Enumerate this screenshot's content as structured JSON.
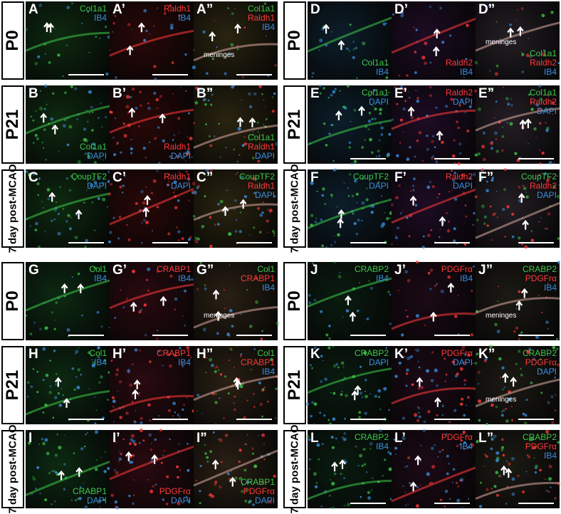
{
  "colors": {
    "green": "#3ec94a",
    "red": "#ff3a3a",
    "blue": "#3a8fe0",
    "white": "#ffffff"
  },
  "groups": [
    {
      "rows": [
        {
          "label": "P0",
          "panels": [
            {
              "id": "A",
              "stains": [
                {
                  "text": "Col1a1",
                  "color": "green"
                },
                {
                  "text": "IB4",
                  "color": "blue"
                }
              ],
              "pos": "top",
              "note": ""
            },
            {
              "id": "A’",
              "stains": [
                {
                  "text": "Raldh1",
                  "color": "red"
                },
                {
                  "text": "IB4",
                  "color": "blue"
                }
              ],
              "pos": "top",
              "note": ""
            },
            {
              "id": "A”",
              "stains": [
                {
                  "text": "Col1a1",
                  "color": "green"
                },
                {
                  "text": "Raldh1",
                  "color": "red"
                },
                {
                  "text": "IB4",
                  "color": "blue"
                }
              ],
              "pos": "top",
              "note": "meninges"
            }
          ]
        },
        {
          "label": "P21",
          "panels": [
            {
              "id": "B",
              "stains": [
                {
                  "text": "Col1a1",
                  "color": "green"
                },
                {
                  "text": "DAPI",
                  "color": "blue"
                }
              ],
              "pos": "bot",
              "note": ""
            },
            {
              "id": "B’",
              "stains": [
                {
                  "text": "Raldh1",
                  "color": "red"
                },
                {
                  "text": "DAPI",
                  "color": "blue"
                }
              ],
              "pos": "bot",
              "note": ""
            },
            {
              "id": "B”",
              "stains": [
                {
                  "text": "Col1a1",
                  "color": "green"
                },
                {
                  "text": "Raldh1",
                  "color": "red"
                },
                {
                  "text": "DAPI",
                  "color": "blue"
                }
              ],
              "pos": "bot",
              "note": ""
            }
          ]
        },
        {
          "label": "7 day post-MCAO",
          "panels": [
            {
              "id": "C",
              "stains": [
                {
                  "text": "CoupTF2",
                  "color": "green"
                },
                {
                  "text": "DAPI",
                  "color": "blue"
                }
              ],
              "pos": "top",
              "note": ""
            },
            {
              "id": "C’",
              "stains": [
                {
                  "text": "Raldh1",
                  "color": "red"
                },
                {
                  "text": "DAPI",
                  "color": "blue"
                }
              ],
              "pos": "top",
              "note": ""
            },
            {
              "id": "C”",
              "stains": [
                {
                  "text": "CoupTF2",
                  "color": "green"
                },
                {
                  "text": "Raldh1",
                  "color": "red"
                },
                {
                  "text": "DAPI",
                  "color": "blue"
                }
              ],
              "pos": "top",
              "note": ""
            }
          ]
        }
      ]
    },
    {
      "rows": [
        {
          "label": "P0",
          "panels": [
            {
              "id": "D",
              "stains": [
                {
                  "text": "Col1a1",
                  "color": "green"
                },
                {
                  "text": "IB4",
                  "color": "blue"
                }
              ],
              "pos": "bot",
              "note": ""
            },
            {
              "id": "D’",
              "stains": [
                {
                  "text": "Raldh2",
                  "color": "red"
                },
                {
                  "text": "IB4",
                  "color": "blue"
                }
              ],
              "pos": "bot",
              "note": ""
            },
            {
              "id": "D”",
              "stains": [
                {
                  "text": "Col1a1",
                  "color": "green"
                },
                {
                  "text": "Raldh2",
                  "color": "red"
                },
                {
                  "text": "IB4",
                  "color": "blue"
                }
              ],
              "pos": "bot",
              "note": "meninges"
            }
          ]
        },
        {
          "label": "P21",
          "panels": [
            {
              "id": "E",
              "stains": [
                {
                  "text": "Col1a1",
                  "color": "green"
                },
                {
                  "text": "DAPI",
                  "color": "blue"
                }
              ],
              "pos": "top",
              "note": ""
            },
            {
              "id": "E’",
              "stains": [
                {
                  "text": "Raldh2",
                  "color": "red"
                },
                {
                  "text": "DAPI",
                  "color": "blue"
                }
              ],
              "pos": "top",
              "note": ""
            },
            {
              "id": "E”",
              "stains": [
                {
                  "text": "Col1a1",
                  "color": "green"
                },
                {
                  "text": "Raldh2",
                  "color": "red"
                },
                {
                  "text": "DAPI",
                  "color": "blue"
                }
              ],
              "pos": "top",
              "note": ""
            }
          ]
        },
        {
          "label": "7 day post-MCAO",
          "panels": [
            {
              "id": "F",
              "stains": [
                {
                  "text": "CoupTF2",
                  "color": "green"
                },
                {
                  "text": "DAPI",
                  "color": "blue"
                }
              ],
              "pos": "top",
              "note": ""
            },
            {
              "id": "F’",
              "stains": [
                {
                  "text": "Raldh2",
                  "color": "red"
                },
                {
                  "text": "DAPI",
                  "color": "blue"
                }
              ],
              "pos": "top",
              "note": ""
            },
            {
              "id": "F”",
              "stains": [
                {
                  "text": "CoupTF2",
                  "color": "green"
                },
                {
                  "text": "Raldh2",
                  "color": "red"
                },
                {
                  "text": "DAPI",
                  "color": "blue"
                }
              ],
              "pos": "top",
              "note": ""
            }
          ]
        }
      ]
    },
    {
      "rows": [
        {
          "label": "P0",
          "panels": [
            {
              "id": "G",
              "stains": [
                {
                  "text": "Col1",
                  "color": "green"
                },
                {
                  "text": "IB4",
                  "color": "blue"
                }
              ],
              "pos": "top",
              "note": ""
            },
            {
              "id": "G’",
              "stains": [
                {
                  "text": "CRABP1",
                  "color": "red"
                },
                {
                  "text": "IB4",
                  "color": "blue"
                }
              ],
              "pos": "top",
              "note": ""
            },
            {
              "id": "G”",
              "stains": [
                {
                  "text": "Col1",
                  "color": "green"
                },
                {
                  "text": "CRABP1",
                  "color": "red"
                },
                {
                  "text": "IB4",
                  "color": "blue"
                }
              ],
              "pos": "top",
              "note": "meninges"
            }
          ]
        },
        {
          "label": "P21",
          "panels": [
            {
              "id": "H",
              "stains": [
                {
                  "text": "Col1",
                  "color": "green"
                },
                {
                  "text": "IB4",
                  "color": "blue"
                }
              ],
              "pos": "top",
              "note": ""
            },
            {
              "id": "H’",
              "stains": [
                {
                  "text": "CRABP1",
                  "color": "red"
                },
                {
                  "text": "IB4",
                  "color": "blue"
                }
              ],
              "pos": "top",
              "note": ""
            },
            {
              "id": "H”",
              "stains": [
                {
                  "text": "Col1",
                  "color": "green"
                },
                {
                  "text": "CRABP1",
                  "color": "red"
                },
                {
                  "text": "IB4",
                  "color": "blue"
                }
              ],
              "pos": "top",
              "note": ""
            }
          ]
        },
        {
          "label": "7 day post-MCAO",
          "panels": [
            {
              "id": "I",
              "stains": [
                {
                  "text": "CRABP1",
                  "color": "green"
                },
                {
                  "text": "DAPI",
                  "color": "blue"
                }
              ],
              "pos": "bot",
              "note": ""
            },
            {
              "id": "I’",
              "stains": [
                {
                  "text": "PDGFrα",
                  "color": "red"
                },
                {
                  "text": "DAPI",
                  "color": "blue"
                }
              ],
              "pos": "bot",
              "note": ""
            },
            {
              "id": "I”",
              "stains": [
                {
                  "text": "CRABP1",
                  "color": "green"
                },
                {
                  "text": "PDGFrα",
                  "color": "red"
                },
                {
                  "text": "DAPI",
                  "color": "blue"
                }
              ],
              "pos": "bot",
              "note": ""
            }
          ]
        }
      ]
    },
    {
      "rows": [
        {
          "label": "P0",
          "panels": [
            {
              "id": "J",
              "stains": [
                {
                  "text": "CRABP2",
                  "color": "green"
                },
                {
                  "text": "IB4",
                  "color": "blue"
                }
              ],
              "pos": "top",
              "note": ""
            },
            {
              "id": "J’",
              "stains": [
                {
                  "text": "PDGFrα",
                  "color": "red"
                },
                {
                  "text": "IB4",
                  "color": "blue"
                }
              ],
              "pos": "top",
              "note": ""
            },
            {
              "id": "J”",
              "stains": [
                {
                  "text": "CRABP2",
                  "color": "green"
                },
                {
                  "text": "PDGFrα",
                  "color": "red"
                },
                {
                  "text": "IB4",
                  "color": "blue"
                }
              ],
              "pos": "top",
              "note": "meninges"
            }
          ]
        },
        {
          "label": "P21",
          "panels": [
            {
              "id": "K",
              "stains": [
                {
                  "text": "CRABP2",
                  "color": "green"
                },
                {
                  "text": "DAPI",
                  "color": "blue"
                }
              ],
              "pos": "top",
              "note": ""
            },
            {
              "id": "K’",
              "stains": [
                {
                  "text": "PDGFrα",
                  "color": "red"
                },
                {
                  "text": "DAPI",
                  "color": "blue"
                }
              ],
              "pos": "top",
              "note": ""
            },
            {
              "id": "K”",
              "stains": [
                {
                  "text": "CRABP2",
                  "color": "green"
                },
                {
                  "text": "PDGFrα",
                  "color": "red"
                },
                {
                  "text": "DAPI",
                  "color": "blue"
                }
              ],
              "pos": "top",
              "note": "meninges"
            }
          ]
        },
        {
          "label": "7 day post-MCAO",
          "panels": [
            {
              "id": "L",
              "stains": [
                {
                  "text": "CRABP2",
                  "color": "green"
                },
                {
                  "text": "IB4",
                  "color": "blue"
                }
              ],
              "pos": "top",
              "note": ""
            },
            {
              "id": "L’",
              "stains": [
                {
                  "text": "PDGFrα",
                  "color": "red"
                },
                {
                  "text": "IB4",
                  "color": "blue"
                }
              ],
              "pos": "top",
              "note": ""
            },
            {
              "id": "L”",
              "stains": [
                {
                  "text": "CRABP2",
                  "color": "green"
                },
                {
                  "text": "PDGFrα",
                  "color": "red"
                },
                {
                  "text": "IB4",
                  "color": "blue"
                }
              ],
              "pos": "top",
              "note": ""
            }
          ]
        }
      ]
    }
  ]
}
